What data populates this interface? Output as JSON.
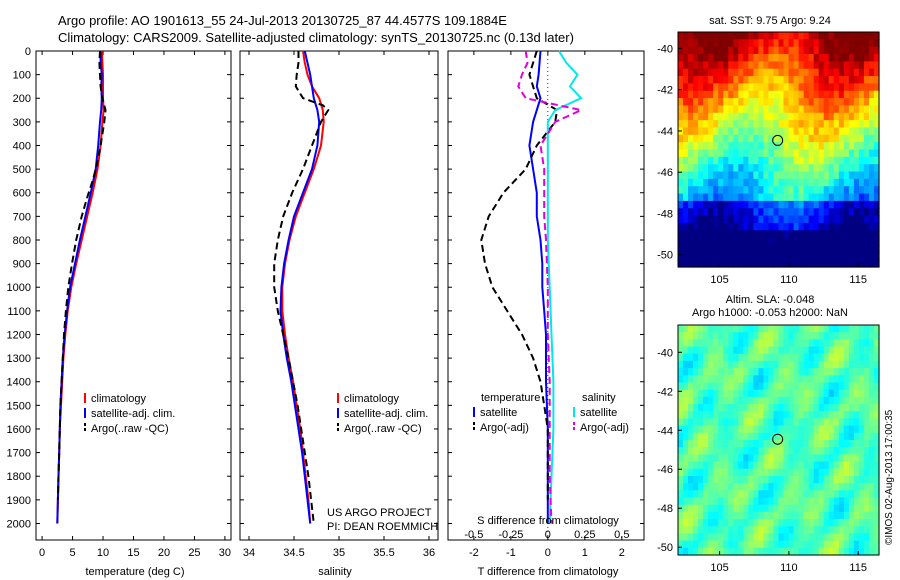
{
  "header": {
    "line1": "Argo profile: AO 1901613_55 24-Jul-2013 20130725_87 44.4577S 109.1884E",
    "line2": "Climatology: CARS2009. Satellite-adjusted climatology: synTS_20130725.nc (0.13d later)"
  },
  "colors": {
    "climatology": "#ff0000",
    "satellite": "#0000ff",
    "argo": "#000000",
    "sal_satellite": "#00e8e8",
    "sal_argo": "#e000e0"
  },
  "chart_data": [
    {
      "type": "line",
      "panel": "temperature",
      "xlabel": "temperature (deg C)",
      "ylabel": "",
      "xlim": [
        -1,
        31
      ],
      "ylim": [
        2070,
        0
      ],
      "xticks": [
        0,
        5,
        10,
        15,
        20,
        25,
        30
      ],
      "yticks": [
        0,
        100,
        200,
        300,
        400,
        500,
        600,
        700,
        800,
        900,
        1000,
        1100,
        1200,
        1300,
        1400,
        1500,
        1600,
        1700,
        1800,
        1900,
        2000
      ],
      "legend": [
        "climatology",
        "satellite-adj. clim.",
        "Argo(..raw -QC)"
      ],
      "series": [
        {
          "name": "climatology",
          "color": "#ff0000",
          "dash": "",
          "points": [
            [
              9.8,
              0
            ],
            [
              9.9,
              50
            ],
            [
              10.0,
              100
            ],
            [
              10.0,
              150
            ],
            [
              10.0,
              200
            ],
            [
              10.1,
              250
            ],
            [
              9.9,
              300
            ],
            [
              9.6,
              400
            ],
            [
              9.1,
              500
            ],
            [
              8.3,
              600
            ],
            [
              7.4,
              700
            ],
            [
              6.5,
              800
            ],
            [
              5.6,
              900
            ],
            [
              4.8,
              1000
            ],
            [
              4.2,
              1100
            ],
            [
              3.8,
              1200
            ],
            [
              3.5,
              1300
            ],
            [
              3.3,
              1400
            ],
            [
              3.1,
              1500
            ],
            [
              2.9,
              1600
            ],
            [
              2.8,
              1700
            ],
            [
              2.7,
              1800
            ],
            [
              2.6,
              1900
            ],
            [
              2.5,
              2000
            ]
          ]
        },
        {
          "name": "satellite-adj. clim.",
          "color": "#0000ff",
          "dash": "",
          "points": [
            [
              9.6,
              0
            ],
            [
              9.6,
              50
            ],
            [
              9.8,
              100
            ],
            [
              9.7,
              150
            ],
            [
              9.8,
              200
            ],
            [
              9.7,
              250
            ],
            [
              9.5,
              300
            ],
            [
              9.2,
              400
            ],
            [
              8.8,
              500
            ],
            [
              8.0,
              600
            ],
            [
              7.1,
              700
            ],
            [
              6.2,
              800
            ],
            [
              5.4,
              900
            ],
            [
              4.6,
              1000
            ],
            [
              4.1,
              1100
            ],
            [
              3.7,
              1200
            ],
            [
              3.4,
              1300
            ],
            [
              3.2,
              1400
            ],
            [
              3.0,
              1500
            ],
            [
              2.9,
              1600
            ],
            [
              2.8,
              1700
            ],
            [
              2.7,
              1800
            ],
            [
              2.6,
              1900
            ],
            [
              2.5,
              2000
            ]
          ]
        },
        {
          "name": "Argo(..raw -QC)",
          "color": "#000000",
          "dash": "7,4",
          "points": [
            [
              9.5,
              0
            ],
            [
              9.4,
              50
            ],
            [
              9.5,
              100
            ],
            [
              9.6,
              150
            ],
            [
              9.9,
              200
            ],
            [
              10.4,
              250
            ],
            [
              10.2,
              300
            ],
            [
              9.6,
              400
            ],
            [
              9.0,
              480
            ],
            [
              8.4,
              540
            ],
            [
              7.4,
              620
            ],
            [
              6.5,
              700
            ],
            [
              5.6,
              800
            ],
            [
              4.9,
              900
            ],
            [
              4.3,
              1000
            ],
            [
              3.9,
              1100
            ],
            [
              3.6,
              1200
            ],
            [
              3.4,
              1300
            ],
            [
              3.2,
              1400
            ],
            [
              3.0,
              1500
            ],
            [
              2.9,
              1600
            ],
            [
              2.8,
              1700
            ],
            [
              2.7,
              1800
            ],
            [
              2.6,
              1900
            ]
          ]
        }
      ]
    },
    {
      "type": "line",
      "panel": "salinity",
      "xlabel": "salinity",
      "xlim": [
        33.9,
        36.1
      ],
      "ylim": [
        2070,
        0
      ],
      "xticks": [
        34,
        34.5,
        35,
        35.5,
        36
      ],
      "legend": [
        "climatology",
        "satellite-adj. clim.",
        "Argo(..raw -QC)"
      ],
      "annotation": [
        "US ARGO PROJECT",
        "PI: DEAN ROEMMICH"
      ],
      "series": [
        {
          "name": "climatology",
          "color": "#ff0000",
          "dash": "",
          "points": [
            [
              34.6,
              0
            ],
            [
              34.62,
              50
            ],
            [
              34.65,
              100
            ],
            [
              34.7,
              150
            ],
            [
              34.78,
              200
            ],
            [
              34.82,
              250
            ],
            [
              34.83,
              300
            ],
            [
              34.8,
              400
            ],
            [
              34.72,
              500
            ],
            [
              34.62,
              600
            ],
            [
              34.52,
              700
            ],
            [
              34.45,
              800
            ],
            [
              34.4,
              900
            ],
            [
              34.37,
              1000
            ],
            [
              34.37,
              1100
            ],
            [
              34.4,
              1200
            ],
            [
              34.44,
              1300
            ],
            [
              34.49,
              1400
            ],
            [
              34.53,
              1500
            ],
            [
              34.57,
              1600
            ],
            [
              34.6,
              1700
            ],
            [
              34.63,
              1800
            ],
            [
              34.66,
              1900
            ],
            [
              34.68,
              2000
            ]
          ]
        },
        {
          "name": "satellite-adj. clim.",
          "color": "#0000ff",
          "dash": "",
          "points": [
            [
              34.62,
              0
            ],
            [
              34.65,
              50
            ],
            [
              34.68,
              100
            ],
            [
              34.7,
              150
            ],
            [
              34.72,
              200
            ],
            [
              34.76,
              250
            ],
            [
              34.78,
              300
            ],
            [
              34.76,
              400
            ],
            [
              34.7,
              500
            ],
            [
              34.6,
              600
            ],
            [
              34.5,
              700
            ],
            [
              34.44,
              800
            ],
            [
              34.39,
              900
            ],
            [
              34.36,
              1000
            ],
            [
              34.35,
              1100
            ],
            [
              34.38,
              1200
            ],
            [
              34.42,
              1300
            ],
            [
              34.47,
              1400
            ],
            [
              34.51,
              1500
            ],
            [
              34.55,
              1600
            ],
            [
              34.59,
              1700
            ],
            [
              34.62,
              1800
            ],
            [
              34.65,
              1900
            ],
            [
              34.68,
              2000
            ]
          ]
        },
        {
          "name": "Argo(..raw -QC)",
          "color": "#000000",
          "dash": "7,4",
          "points": [
            [
              34.55,
              0
            ],
            [
              34.55,
              50
            ],
            [
              34.53,
              100
            ],
            [
              34.52,
              150
            ],
            [
              34.6,
              200
            ],
            [
              34.82,
              230
            ],
            [
              34.88,
              250
            ],
            [
              34.8,
              300
            ],
            [
              34.7,
              400
            ],
            [
              34.6,
              500
            ],
            [
              34.48,
              600
            ],
            [
              34.38,
              700
            ],
            [
              34.32,
              800
            ],
            [
              34.28,
              900
            ],
            [
              34.28,
              1000
            ],
            [
              34.32,
              1100
            ],
            [
              34.38,
              1200
            ],
            [
              34.44,
              1300
            ],
            [
              34.49,
              1400
            ],
            [
              34.54,
              1500
            ],
            [
              34.58,
              1600
            ],
            [
              34.62,
              1700
            ],
            [
              34.66,
              1800
            ],
            [
              34.69,
              1900
            ],
            [
              34.72,
              2000
            ]
          ]
        }
      ]
    },
    {
      "type": "line",
      "panel": "difference",
      "xlabel": "T difference from climatology",
      "xlabel_top": "S difference from climatology",
      "xlim": [
        -2.7,
        2.6
      ],
      "ylim": [
        2070,
        0
      ],
      "xticks": [
        -2,
        -1,
        0,
        1,
        2
      ],
      "xticks_s": [
        -0.5,
        -0.25,
        0,
        0.25,
        0.5
      ],
      "legend_temperature": {
        "title": "temperature",
        "items": [
          "satellite",
          "Argo(-adj)"
        ]
      },
      "legend_salinity": {
        "title": "salinity",
        "items": [
          "satellite",
          "Argo(-adj)"
        ]
      },
      "series": [
        {
          "name": "satellite",
          "group": "temperature",
          "color": "#0000ff",
          "dash": "",
          "points": [
            [
              -0.2,
              0
            ],
            [
              -0.25,
              100
            ],
            [
              -0.3,
              150
            ],
            [
              -0.2,
              200
            ],
            [
              -0.3,
              250
            ],
            [
              -0.4,
              300
            ],
            [
              -0.5,
              400
            ],
            [
              -0.4,
              500
            ],
            [
              -0.3,
              600
            ],
            [
              -0.3,
              700
            ],
            [
              -0.2,
              800
            ],
            [
              -0.15,
              900
            ],
            [
              -0.15,
              1000
            ],
            [
              -0.1,
              1100
            ],
            [
              -0.05,
              1200
            ],
            [
              -0.05,
              1400
            ],
            [
              0,
              1600
            ],
            [
              0,
              1800
            ],
            [
              0,
              2000
            ]
          ]
        },
        {
          "name": "Argo(-adj)",
          "group": "temperature",
          "color": "#000000",
          "dash": "7,4",
          "points": [
            [
              -0.3,
              0
            ],
            [
              -0.4,
              50
            ],
            [
              -0.5,
              100
            ],
            [
              -0.4,
              150
            ],
            [
              -0.3,
              200
            ],
            [
              0.25,
              250
            ],
            [
              0.2,
              300
            ],
            [
              -0.3,
              400
            ],
            [
              -0.6,
              500
            ],
            [
              -1.2,
              600
            ],
            [
              -1.6,
              700
            ],
            [
              -1.8,
              800
            ],
            [
              -1.7,
              900
            ],
            [
              -1.5,
              1000
            ],
            [
              -1.1,
              1100
            ],
            [
              -0.7,
              1200
            ],
            [
              -0.4,
              1300
            ],
            [
              -0.2,
              1400
            ],
            [
              -0.1,
              1500
            ],
            [
              0,
              1600
            ],
            [
              0,
              1800
            ],
            [
              0,
              1900
            ]
          ]
        },
        {
          "name": "satellite",
          "group": "salinity",
          "color": "#00e8e8",
          "dash": "",
          "points": [
            [
              0.3,
              0
            ],
            [
              0.5,
              50
            ],
            [
              0.8,
              100
            ],
            [
              0.6,
              150
            ],
            [
              0.9,
              200
            ],
            [
              0.2,
              250
            ],
            [
              0.0,
              300
            ],
            [
              0.0,
              400
            ],
            [
              0.0,
              600
            ],
            [
              0.0,
              800
            ],
            [
              0.05,
              1000
            ],
            [
              0.1,
              1200
            ],
            [
              0.15,
              1400
            ],
            [
              0.15,
              1600
            ],
            [
              0.1,
              1800
            ],
            [
              0.05,
              2000
            ]
          ]
        },
        {
          "name": "Argo(-adj)",
          "group": "salinity",
          "color": "#e000e0",
          "dash": "7,4",
          "points": [
            [
              -0.6,
              0
            ],
            [
              -0.55,
              50
            ],
            [
              -0.7,
              100
            ],
            [
              -0.8,
              150
            ],
            [
              -0.6,
              200
            ],
            [
              0.9,
              250
            ],
            [
              0.2,
              300
            ],
            [
              -0.2,
              400
            ],
            [
              -0.1,
              500
            ],
            [
              -0.1,
              600
            ],
            [
              -0.1,
              700
            ],
            [
              -0.05,
              800
            ],
            [
              0,
              1000
            ],
            [
              0,
              1200
            ],
            [
              0.05,
              1400
            ],
            [
              0.05,
              1600
            ],
            [
              0.05,
              1800
            ],
            [
              0.1,
              2000
            ]
          ]
        }
      ]
    },
    {
      "type": "heatmap",
      "panel": "sst_map",
      "title": "sat. SST: 9.75 Argo: 9.24",
      "xlim": [
        102,
        116.5
      ],
      "ylim": [
        -50.6,
        -39.2
      ],
      "xticks": [
        105,
        110,
        115
      ],
      "yticks": [
        -40,
        -42,
        -44,
        -46,
        -48,
        -50
      ],
      "marker": [
        109.19,
        -44.46
      ]
    },
    {
      "type": "heatmap",
      "panel": "sla_map",
      "title": [
        "Altim. SLA: -0.048",
        "Argo h1000: -0.053 h2000: NaN"
      ],
      "xlim": [
        102,
        116.5
      ],
      "ylim": [
        -50.4,
        -38.6
      ],
      "xticks": [
        105,
        110,
        115
      ],
      "yticks": [
        -40,
        -42,
        -44,
        -46,
        -48,
        -50
      ],
      "marker": [
        109.19,
        -44.46
      ]
    }
  ],
  "sidebar_stamp": "©IMOS 02-Aug-2013 17:00:35"
}
